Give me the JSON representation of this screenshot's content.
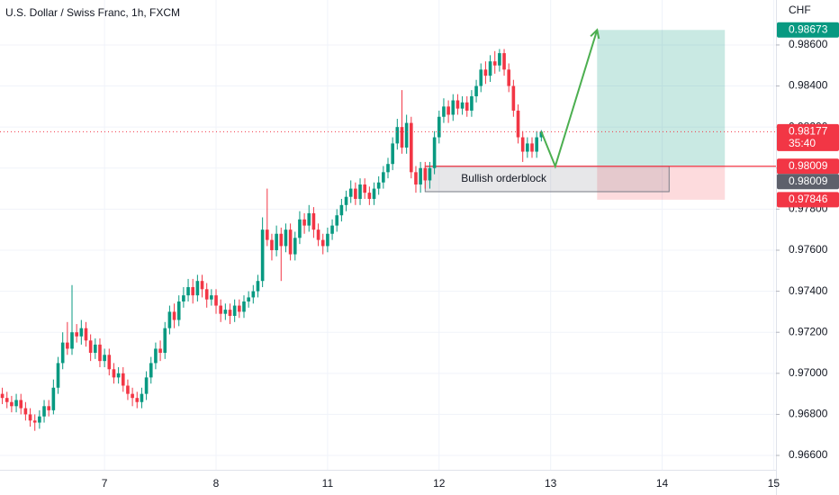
{
  "chart_data": {
    "type": "candlestick",
    "title": "U.S. Dollar / Swiss Franc, 1h, FXCM",
    "currency": "CHF",
    "up_color": "#089981",
    "down_color": "#f23645",
    "grid": true,
    "categories": [
      null,
      null,
      null,
      null,
      null,
      null,
      null,
      null,
      null,
      null,
      null,
      null,
      null,
      null,
      null,
      null,
      null,
      null,
      null,
      null,
      null,
      null,
      "7",
      null,
      null,
      null,
      null,
      null,
      null,
      null,
      null,
      null,
      null,
      null,
      null,
      null,
      null,
      null,
      null,
      null,
      null,
      null,
      null,
      null,
      null,
      null,
      "8",
      null,
      null,
      null,
      null,
      null,
      null,
      null,
      null,
      null,
      null,
      null,
      null,
      null,
      null,
      null,
      null,
      null,
      null,
      null,
      null,
      null,
      null,
      null,
      "11",
      null,
      null,
      null,
      null,
      null,
      null,
      null,
      null,
      null,
      null,
      null,
      null,
      null,
      null,
      null,
      null,
      null,
      null,
      null,
      null,
      null,
      null,
      null,
      "12",
      null,
      null,
      null,
      null,
      null,
      null,
      null,
      null,
      null,
      null,
      null,
      null,
      null,
      null,
      null,
      null,
      null,
      null,
      null,
      null,
      null,
      null,
      null,
      "13",
      null,
      null,
      null,
      null,
      null,
      null,
      null,
      null,
      null,
      null,
      null,
      null,
      null,
      null,
      null,
      null,
      null,
      null,
      null,
      null,
      null,
      null,
      null,
      "14",
      null,
      null,
      null,
      null,
      null,
      null,
      null,
      null,
      null,
      null,
      null,
      null,
      null,
      null,
      null,
      null,
      null,
      null,
      null,
      null,
      null,
      null,
      null,
      "15"
    ],
    "open": [
      0.969,
      0.9688,
      0.9686,
      0.9684,
      0.9687,
      0.9683,
      0.968,
      0.9677,
      0.9676,
      0.9679,
      0.9684,
      0.9682,
      0.9693,
      0.9705,
      0.9715,
      0.9712,
      0.972,
      0.9718,
      0.9722,
      0.9716,
      0.971,
      0.9714,
      0.9706,
      0.9709,
      0.9702,
      0.9698,
      0.97,
      0.9694,
      0.969,
      0.9688,
      0.9686,
      0.969,
      0.9698,
      0.9705,
      0.9712,
      0.971,
      0.9722,
      0.973,
      0.9726,
      0.9735,
      0.9738,
      0.9742,
      0.9738,
      0.9745,
      0.9741,
      0.9736,
      0.9738,
      0.9733,
      0.9729,
      0.9731,
      0.9728,
      0.9733,
      0.973,
      0.9735,
      0.9737,
      0.974,
      0.9745,
      0.977,
      0.9765,
      0.976,
      0.9768,
      0.9762,
      0.977,
      0.9758,
      0.9766,
      0.9775,
      0.9772,
      0.9778,
      0.977,
      0.9765,
      0.9762,
      0.9768,
      0.9772,
      0.9777,
      0.9782,
      0.9786,
      0.979,
      0.9785,
      0.9792,
      0.9788,
      0.9785,
      0.979,
      0.9793,
      0.9798,
      0.9802,
      0.9812,
      0.982,
      0.981,
      0.9822,
      0.9798,
      0.9792,
      0.98,
      0.9794,
      0.98,
      0.9815,
      0.9825,
      0.983,
      0.9826,
      0.9833,
      0.9829,
      0.9832,
      0.9828,
      0.9835,
      0.984,
      0.9848,
      0.9845,
      0.9852,
      0.985,
      0.9856,
      0.9848,
      0.984,
      0.9828,
      0.9815,
      0.9808,
      0.9812,
      0.9808,
      0.9815,
      null,
      null,
      null,
      null,
      null,
      null,
      null,
      null,
      null,
      null,
      null,
      null,
      null,
      null,
      null,
      null,
      null,
      null,
      null,
      null,
      null,
      null,
      null,
      null,
      null,
      null,
      null,
      null,
      null,
      null,
      null,
      null,
      null,
      null,
      null,
      null,
      null,
      null,
      null,
      null,
      null,
      null,
      null,
      null,
      null,
      null,
      null,
      null,
      null,
      null
    ],
    "high": [
      0.9693,
      0.9691,
      0.9689,
      0.969,
      0.969,
      0.9686,
      0.9683,
      0.968,
      0.9682,
      0.9687,
      0.9687,
      0.9697,
      0.9708,
      0.972,
      0.9725,
      0.9743,
      0.9724,
      0.9726,
      0.9725,
      0.9719,
      0.9717,
      0.9717,
      0.9712,
      0.9712,
      0.9705,
      0.9703,
      0.9703,
      0.9697,
      0.9693,
      0.9691,
      0.9693,
      0.9701,
      0.9708,
      0.9715,
      0.9716,
      0.9725,
      0.9733,
      0.9734,
      0.9738,
      0.9742,
      0.9746,
      0.9746,
      0.9748,
      0.9748,
      0.9744,
      0.9741,
      0.9741,
      0.9736,
      0.9734,
      0.9734,
      0.9736,
      0.9736,
      0.9738,
      0.974,
      0.9743,
      0.9748,
      0.9776,
      0.979,
      0.9768,
      0.9772,
      0.9771,
      0.9773,
      0.9773,
      0.9769,
      0.9779,
      0.9778,
      0.9782,
      0.9781,
      0.9773,
      0.9768,
      0.9771,
      0.9775,
      0.978,
      0.9785,
      0.9789,
      0.9794,
      0.9793,
      0.9795,
      0.9795,
      0.9791,
      0.9793,
      0.9796,
      0.9801,
      0.9805,
      0.9815,
      0.9824,
      0.9838,
      0.9826,
      0.9825,
      0.9801,
      0.9803,
      0.9803,
      0.9803,
      0.9818,
      0.9828,
      0.9834,
      0.9833,
      0.9836,
      0.9836,
      0.9835,
      0.9835,
      0.9838,
      0.9843,
      0.9851,
      0.9852,
      0.9855,
      0.9857,
      0.9858,
      0.9858,
      0.9851,
      0.9843,
      0.9831,
      0.9818,
      0.9815,
      0.9815,
      0.9818,
      0.98185,
      null,
      null,
      null,
      null,
      null,
      null,
      null,
      null,
      null,
      null,
      null,
      null,
      null,
      null,
      null,
      null,
      null,
      null,
      null,
      null,
      null,
      null,
      null,
      null,
      null,
      null,
      null,
      null,
      null,
      null,
      null,
      null,
      null,
      null,
      null,
      null,
      null,
      null,
      null,
      null,
      null,
      null,
      null,
      null,
      null,
      null,
      null,
      null,
      null,
      null
    ],
    "low": [
      0.9685,
      0.9683,
      0.9681,
      0.9681,
      0.968,
      0.9677,
      0.9674,
      0.9672,
      0.9673,
      0.9676,
      0.9679,
      0.968,
      0.969,
      0.9702,
      0.9709,
      0.9709,
      0.9715,
      0.9714,
      0.9713,
      0.9706,
      0.9707,
      0.9703,
      0.9703,
      0.9699,
      0.9695,
      0.9695,
      0.9691,
      0.9687,
      0.9684,
      0.9683,
      0.9683,
      0.9687,
      0.9695,
      0.9702,
      0.9706,
      0.9707,
      0.9719,
      0.9722,
      0.9723,
      0.9732,
      0.9735,
      0.9734,
      0.9735,
      0.9737,
      0.9732,
      0.9733,
      0.9729,
      0.9725,
      0.9726,
      0.9724,
      0.9725,
      0.9727,
      0.9727,
      0.9732,
      0.9734,
      0.9737,
      0.9742,
      0.9762,
      0.9755,
      0.9757,
      0.9745,
      0.9759,
      0.9755,
      0.9755,
      0.9763,
      0.9768,
      0.9769,
      0.9766,
      0.9762,
      0.9758,
      0.9759,
      0.9765,
      0.9769,
      0.9774,
      0.9779,
      0.9783,
      0.9782,
      0.9782,
      0.9785,
      0.9782,
      0.9782,
      0.9787,
      0.979,
      0.9795,
      0.9799,
      0.9809,
      0.9807,
      0.9807,
      0.9795,
      0.9788,
      0.9788,
      0.979,
      0.979,
      0.9797,
      0.9812,
      0.9822,
      0.9822,
      0.9823,
      0.9826,
      0.9826,
      0.9825,
      0.9825,
      0.9832,
      0.9837,
      0.9841,
      0.9842,
      0.9846,
      0.9847,
      0.9845,
      0.9837,
      0.9825,
      0.9812,
      0.9803,
      0.9805,
      0.9805,
      0.9805,
      0.9813,
      null,
      null,
      null,
      null,
      null,
      null,
      null,
      null,
      null,
      null,
      null,
      null,
      null,
      null,
      null,
      null,
      null,
      null,
      null,
      null,
      null,
      null,
      null,
      null,
      null,
      null,
      null,
      null,
      null,
      null,
      null,
      null,
      null,
      null,
      null,
      null,
      null,
      null,
      null,
      null,
      null,
      null,
      null,
      null,
      null,
      null,
      null,
      null,
      null,
      null
    ],
    "close": [
      0.9688,
      0.9686,
      0.9684,
      0.9687,
      0.9683,
      0.968,
      0.9677,
      0.9676,
      0.9679,
      0.9684,
      0.9682,
      0.9693,
      0.9705,
      0.9715,
      0.9712,
      0.972,
      0.9718,
      0.9722,
      0.9716,
      0.971,
      0.9714,
      0.9706,
      0.9709,
      0.9702,
      0.9698,
      0.97,
      0.9694,
      0.969,
      0.9688,
      0.9686,
      0.969,
      0.9698,
      0.9705,
      0.9712,
      0.971,
      0.9722,
      0.973,
      0.9726,
      0.9735,
      0.9738,
      0.9742,
      0.9738,
      0.9745,
      0.9741,
      0.9736,
      0.9738,
      0.9733,
      0.9729,
      0.9731,
      0.9728,
      0.9733,
      0.973,
      0.9735,
      0.9737,
      0.974,
      0.9745,
      0.977,
      0.9765,
      0.976,
      0.9768,
      0.9762,
      0.977,
      0.9758,
      0.9766,
      0.9775,
      0.9772,
      0.9778,
      0.977,
      0.9765,
      0.9762,
      0.9768,
      0.9772,
      0.9777,
      0.9782,
      0.9786,
      0.979,
      0.9785,
      0.9792,
      0.9788,
      0.9785,
      0.979,
      0.9793,
      0.9798,
      0.9802,
      0.9812,
      0.982,
      0.981,
      0.9822,
      0.9798,
      0.9792,
      0.98,
      0.9794,
      0.98,
      0.9815,
      0.9825,
      0.983,
      0.9826,
      0.9833,
      0.9829,
      0.9832,
      0.9828,
      0.9835,
      0.984,
      0.9848,
      0.9845,
      0.9852,
      0.985,
      0.9856,
      0.9848,
      0.984,
      0.9828,
      0.9815,
      0.9808,
      0.9812,
      0.9808,
      0.9815,
      0.98177,
      null,
      null,
      null,
      null,
      null,
      null,
      null,
      null,
      null,
      null,
      null,
      null,
      null,
      null,
      null,
      null,
      null,
      null,
      null,
      null,
      null,
      null,
      null,
      null,
      null,
      null,
      null,
      null,
      null,
      null,
      null,
      null,
      null,
      null,
      null,
      null,
      null,
      null,
      null,
      null,
      null,
      null,
      null,
      null,
      null,
      null,
      null,
      null,
      null,
      null
    ],
    "ylim": [
      0.9653,
      0.98819
    ],
    "yticks": [
      {
        "value": 0.966,
        "label": "0.96600"
      },
      {
        "value": 0.968,
        "label": "0.96800"
      },
      {
        "value": 0.97,
        "label": "0.97000"
      },
      {
        "value": 0.972,
        "label": "0.97200"
      },
      {
        "value": 0.974,
        "label": "0.97400"
      },
      {
        "value": 0.976,
        "label": "0.97600"
      },
      {
        "value": 0.978,
        "label": "0.97800"
      },
      {
        "value": 0.98,
        "label": "0.98000"
      },
      {
        "value": 0.982,
        "label": "0.98200"
      },
      {
        "value": 0.984,
        "label": "0.98400"
      },
      {
        "value": 0.986,
        "label": "0.98600"
      }
    ],
    "position": {
      "entry": 0.98009,
      "target": 0.98673,
      "stop": 0.97846
    },
    "orderblock": {
      "label": "Bullish orderblock",
      "top": 0.98009,
      "bottom": 0.97885
    },
    "price_labels": [
      {
        "value": 0.98673,
        "label": "0.98673",
        "color": "#089981"
      },
      {
        "value": 0.98177,
        "label": "0.98177",
        "sublabel": "35:40",
        "color": "#f23645"
      },
      {
        "value": 0.98009,
        "label": "0.98009",
        "color": "#f23645"
      },
      {
        "value": 0.98009,
        "label": "0.98009",
        "color": "#5d606b"
      },
      {
        "value": 0.97846,
        "label": "0.97846",
        "color": "#f23645"
      }
    ]
  }
}
